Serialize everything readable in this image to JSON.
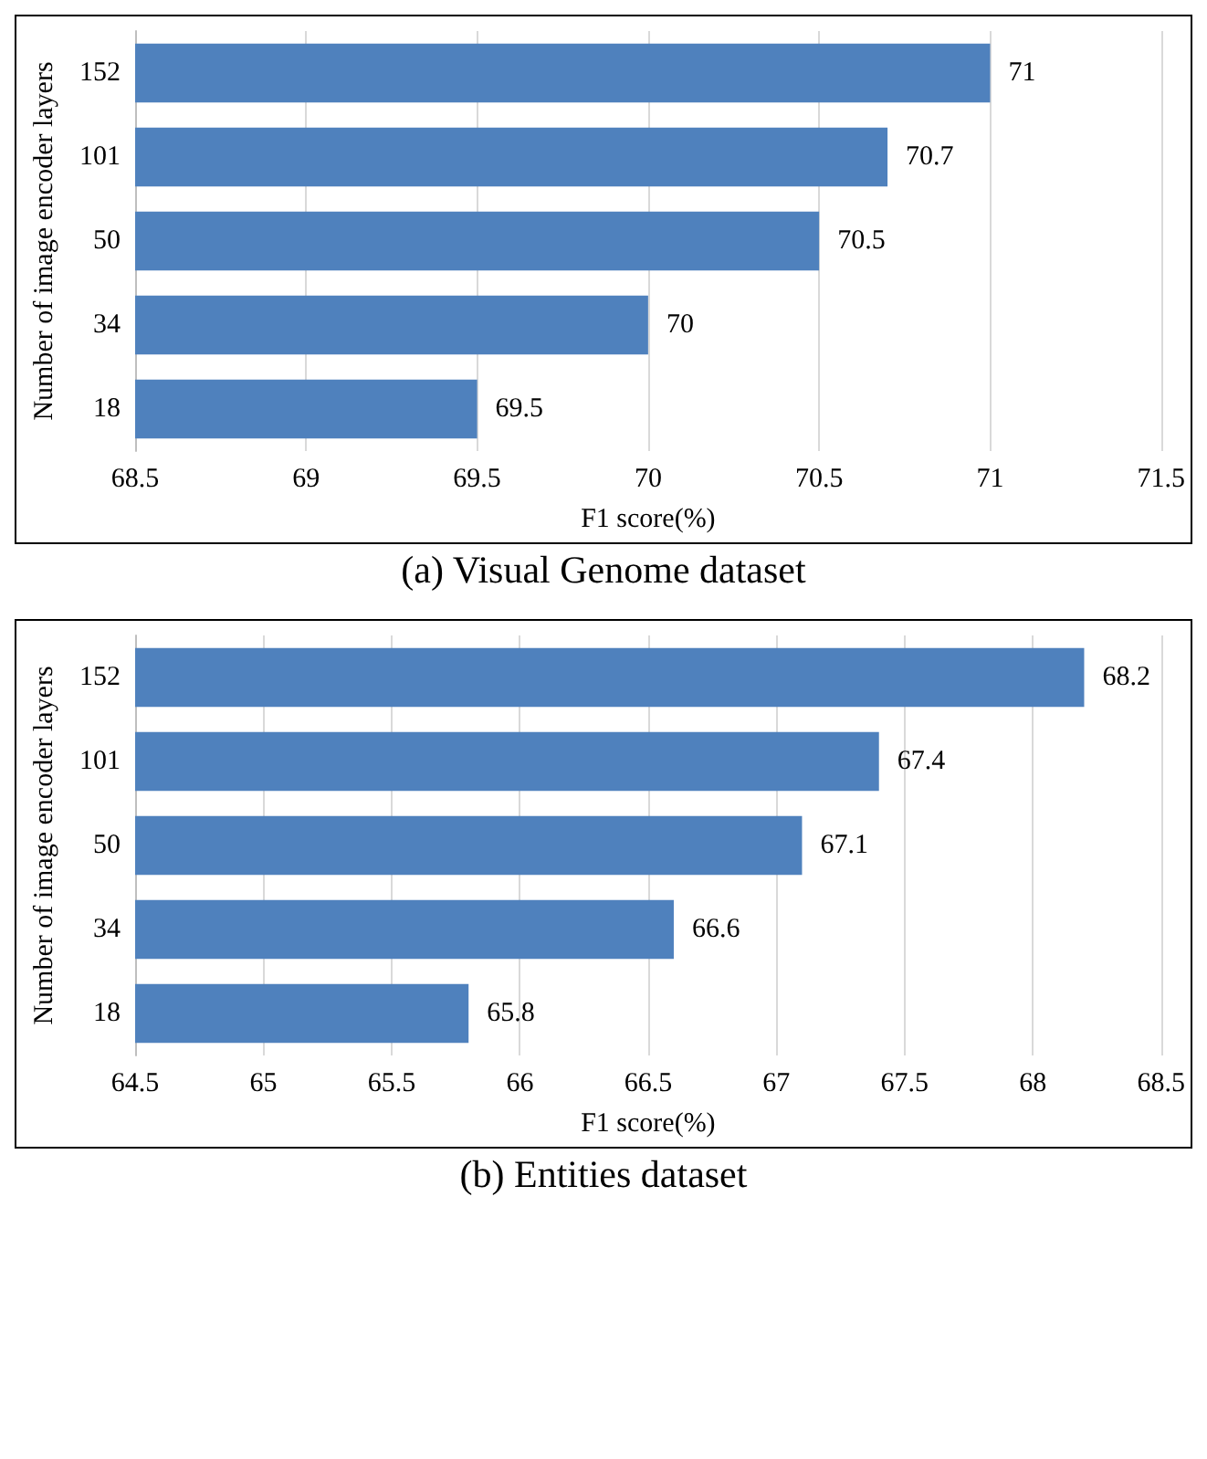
{
  "chart_data": [
    {
      "type": "bar",
      "orientation": "horizontal",
      "title": "(a) Visual Genome dataset",
      "xlabel": "F1 score(%)",
      "ylabel": "Number of image encoder layers",
      "categories": [
        "152",
        "101",
        "50",
        "34",
        "18"
      ],
      "values": [
        71,
        70.7,
        70.5,
        70,
        69.5
      ],
      "color": "#4f81bd",
      "xlim": [
        68.5,
        71.5
      ],
      "xticks": [
        68.5,
        69,
        69.5,
        70,
        70.5,
        71,
        71.5
      ],
      "grid": "x",
      "data_labels": true
    },
    {
      "type": "bar",
      "orientation": "horizontal",
      "title": "(b) Entities dataset",
      "xlabel": "F1 score(%)",
      "ylabel": "Number of image encoder layers",
      "categories": [
        "152",
        "101",
        "50",
        "34",
        "18"
      ],
      "values": [
        68.2,
        67.4,
        67.1,
        66.6,
        65.8
      ],
      "color": "#4f81bd",
      "xlim": [
        64.5,
        68.5
      ],
      "xticks": [
        64.5,
        65,
        65.5,
        66,
        66.5,
        67,
        67.5,
        68,
        68.5
      ],
      "grid": "x",
      "data_labels": true
    }
  ]
}
